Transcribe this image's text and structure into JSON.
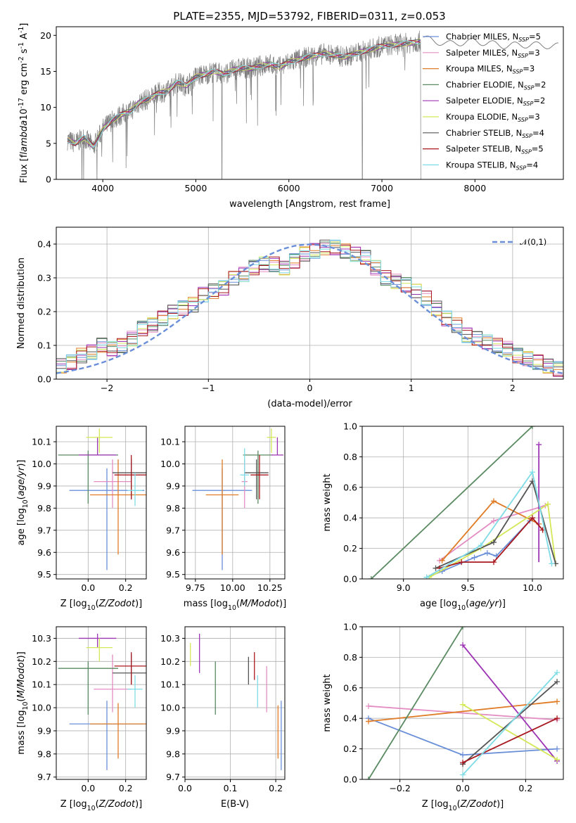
{
  "title": "PLATE=2355, MJD=53792, FIBERID=0311, z=0.053",
  "models": [
    {
      "name": "Chabrier MILES, N$_{SSP}$=5",
      "base": "Chabrier MILES, N",
      "sub": "SSP",
      "tail": "=5",
      "color": "#6a8fd8"
    },
    {
      "name": "Salpeter MILES, N$_{SSP}$=3",
      "base": "Salpeter MILES, N",
      "sub": "SSP",
      "tail": "=3",
      "color": "#e38dc3"
    },
    {
      "name": "Kroupa MILES, N$_{SSP}$=3",
      "base": "Kroupa MILES, N",
      "sub": "SSP",
      "tail": "=3",
      "color": "#e07b26"
    },
    {
      "name": "Chabrier ELODIE, N$_{SSP}$=2",
      "base": "Chabrier ELODIE, N",
      "sub": "SSP",
      "tail": "=2",
      "color": "#5a8a62"
    },
    {
      "name": "Salpeter ELODIE, N$_{SSP}$=2",
      "base": "Salpeter ELODIE, N",
      "sub": "SSP",
      "tail": "=2",
      "color": "#9d35b5"
    },
    {
      "name": "Kroupa ELODIE, N$_{SSP}$=3",
      "base": "Kroupa ELODIE, N",
      "sub": "SSP",
      "tail": "=3",
      "color": "#d4e858"
    },
    {
      "name": "Chabrier STELIB, N$_{SSP}$=4",
      "base": "Chabrier STELIB, N",
      "sub": "SSP",
      "tail": "=4",
      "color": "#555555"
    },
    {
      "name": "Salpeter STELIB, N$_{SSP}$=5",
      "base": "Salpeter STELIB, N",
      "sub": "SSP",
      "tail": "=5",
      "color": "#a8181f"
    },
    {
      "name": "Kroupa STELIB, N$_{SSP}$=4",
      "base": "Kroupa STELIB, N",
      "sub": "SSP",
      "tail": "=4",
      "color": "#7fdce6"
    }
  ],
  "chart_data": [
    {
      "id": "spectrum",
      "type": "line",
      "xlabel": "wavelength [Angstrom, rest frame]",
      "ylabel": "Flux [f$_\\lambda$10$^{-17}$ erg cm$^{-2}$ s$^{-1}$ A$^{-1}$]",
      "xlim": [
        3500,
        8950
      ],
      "ylim": [
        0,
        21.2
      ],
      "xticks": [
        4000,
        5000,
        6000,
        7000,
        8000
      ],
      "yticks": [
        0,
        5,
        10,
        15,
        20
      ],
      "grid": false,
      "legend": "top-right",
      "x": [
        3620,
        3700,
        3800,
        3900,
        4000,
        4100,
        4200,
        4300,
        4400,
        4500,
        4600,
        4700,
        4800,
        4900,
        5000,
        5100,
        5200,
        5300,
        5400,
        5500,
        5600,
        5700,
        5800,
        5900,
        6000,
        6200,
        6400,
        6600,
        6800,
        7000,
        7200,
        7350,
        7420
      ],
      "observed_flux": [
        5.5,
        5.0,
        5.8,
        4.5,
        7.0,
        8.2,
        9.0,
        9.5,
        10.8,
        11.2,
        12.0,
        12.3,
        13.5,
        13.0,
        14.3,
        14.6,
        15.0,
        14.6,
        15.2,
        15.5,
        15.4,
        15.8,
        16.0,
        15.6,
        16.3,
        17.0,
        17.5,
        17.0,
        17.8,
        18.5,
        18.8,
        19.0,
        19.2
      ],
      "continuum_after_7400": {
        "x": [
          7450,
          7700,
          8000,
          8300,
          8600,
          8900
        ],
        "flux": [
          19.6,
          18.8,
          19.2,
          18.6,
          18.7,
          18.5
        ]
      },
      "notable_dips_x": [
        5280,
        6790,
        7420
      ]
    },
    {
      "id": "residuals",
      "type": "histogram",
      "xlabel": "(data-model)/error",
      "ylabel": "Normed distribution",
      "xlim": [
        -2.5,
        2.5
      ],
      "ylim": [
        0,
        0.45
      ],
      "xticks": [
        -2,
        -1,
        0,
        1,
        2
      ],
      "yticks": [
        0.0,
        0.1,
        0.2,
        0.3,
        0.4
      ],
      "grid": true,
      "legend": "top-right",
      "reference_curve_label": "$\\mathcal{N}(0,1)$",
      "bin_width": 0.1,
      "bin_centers": [
        -2.45,
        -2.35,
        -2.25,
        -2.15,
        -2.05,
        -1.95,
        -1.85,
        -1.75,
        -1.65,
        -1.55,
        -1.45,
        -1.35,
        -1.25,
        -1.15,
        -1.05,
        -0.95,
        -0.85,
        -0.75,
        -0.65,
        -0.55,
        -0.45,
        -0.35,
        -0.25,
        -0.15,
        -0.05,
        0.05,
        0.15,
        0.25,
        0.35,
        0.45,
        0.55,
        0.65,
        0.75,
        0.85,
        0.95,
        1.05,
        1.15,
        1.25,
        1.35,
        1.45,
        1.55,
        1.65,
        1.75,
        1.85,
        1.95,
        2.05,
        2.15,
        2.25,
        2.35,
        2.45
      ],
      "densities": [
        0.04,
        0.05,
        0.07,
        0.08,
        0.1,
        0.09,
        0.1,
        0.12,
        0.15,
        0.16,
        0.18,
        0.2,
        0.21,
        0.22,
        0.25,
        0.26,
        0.27,
        0.3,
        0.31,
        0.33,
        0.34,
        0.34,
        0.33,
        0.35,
        0.37,
        0.38,
        0.39,
        0.39,
        0.38,
        0.37,
        0.36,
        0.33,
        0.3,
        0.29,
        0.28,
        0.26,
        0.24,
        0.21,
        0.18,
        0.16,
        0.13,
        0.12,
        0.11,
        0.1,
        0.09,
        0.07,
        0.06,
        0.05,
        0.04,
        0.03
      ],
      "spread": 0.022
    },
    {
      "id": "age-vs-Z",
      "type": "scatter",
      "xlabel": "Z [log$_{10}$($Z/Z_\\odot$)]",
      "ylabel": "age  [log$_{10}$($age/yr$)]",
      "xlim": [
        -0.17,
        0.31
      ],
      "ylim": [
        9.48,
        10.17
      ],
      "xticks": [
        0.0,
        0.2
      ],
      "yticks": [
        9.5,
        9.6,
        9.7,
        9.8,
        9.9,
        10.0,
        10.1
      ],
      "grid": true,
      "points": [
        {
          "x": 0.1,
          "y": 9.88,
          "xerr": 0.2,
          "yerr": [
            0.36,
            0.1
          ]
        },
        {
          "x": 0.13,
          "y": 9.92,
          "xerr": 0.1,
          "yerr": [
            0.12,
            0.1
          ]
        },
        {
          "x": 0.16,
          "y": 9.86,
          "xerr": 0.15,
          "yerr": [
            0.27,
            0.16
          ]
        },
        {
          "x": 0.0,
          "y": 10.04,
          "xerr": 0.16,
          "yerr": [
            0.22,
            0.02
          ]
        },
        {
          "x": 0.05,
          "y": 10.04,
          "xerr": 0.1,
          "yerr": [
            0.0,
            0.08
          ]
        },
        {
          "x": 0.06,
          "y": 10.12,
          "xerr": 0.07,
          "yerr": [
            0.07,
            0.04
          ]
        },
        {
          "x": 0.23,
          "y": 9.96,
          "xerr": 0.1,
          "yerr": [
            0.12,
            0.06
          ]
        },
        {
          "x": 0.23,
          "y": 9.95,
          "xerr": 0.09,
          "yerr": [
            0.11,
            0.09
          ]
        },
        {
          "x": 0.25,
          "y": 9.88,
          "xerr": 0.04,
          "yerr": [
            0.07,
            0.08
          ]
        }
      ]
    },
    {
      "id": "age-vs-mass",
      "type": "scatter",
      "xlabel": "mass [log$_{10}$($M/M_\\odot$)]",
      "ylabel": "",
      "xlim": [
        9.68,
        10.35
      ],
      "ylim": [
        9.48,
        10.17
      ],
      "xticks": [
        9.75,
        10.0,
        10.25
      ],
      "yticks": [
        9.5,
        9.6,
        9.7,
        9.8,
        9.9,
        10.0,
        10.1
      ],
      "grid": true,
      "points": [
        {
          "x": 9.93,
          "y": 9.88,
          "xerr": 0.2,
          "yerr": [
            0.36,
            0.1
          ]
        },
        {
          "x": 10.08,
          "y": 9.92,
          "xerr": 0.02,
          "yerr": [
            0.12,
            0.1
          ]
        },
        {
          "x": 9.93,
          "y": 9.86,
          "xerr": 0.11,
          "yerr": [
            0.27,
            0.16
          ]
        },
        {
          "x": 10.17,
          "y": 10.04,
          "xerr": 0.1,
          "yerr": [
            0.22,
            0.02
          ]
        },
        {
          "x": 10.3,
          "y": 10.04,
          "xerr": 0.04,
          "yerr": [
            0.0,
            0.08
          ]
        },
        {
          "x": 10.26,
          "y": 10.12,
          "xerr": 0.03,
          "yerr": [
            0.07,
            0.04
          ]
        },
        {
          "x": 10.16,
          "y": 9.96,
          "xerr": 0.08,
          "yerr": [
            0.12,
            0.06
          ]
        },
        {
          "x": 10.18,
          "y": 9.95,
          "xerr": 0.06,
          "yerr": [
            0.11,
            0.09
          ]
        },
        {
          "x": 10.08,
          "y": 9.95,
          "xerr": 0.03,
          "yerr": [
            0.05,
            0.12
          ]
        }
      ]
    },
    {
      "id": "weight-vs-age",
      "type": "line",
      "xlabel": "age  [log$_{10}$($age/yr$)]",
      "ylabel": "mass weight",
      "xlim": [
        8.68,
        10.24
      ],
      "ylim": [
        0,
        1
      ],
      "xticks": [
        9.0,
        9.5,
        10.0
      ],
      "yticks": [
        0.0,
        0.2,
        0.4,
        0.6,
        0.8,
        1.0
      ],
      "grid": true,
      "series": [
        {
          "x": [
            9.18,
            9.3,
            9.55,
            9.65,
            9.72,
            9.98
          ],
          "y": [
            0.01,
            0.05,
            0.14,
            0.17,
            0.15,
            0.38
          ]
        },
        {
          "x": [
            9.28,
            9.7,
            10.1
          ],
          "y": [
            0.12,
            0.38,
            0.48
          ]
        },
        {
          "x": [
            9.3,
            9.7,
            10.05
          ],
          "y": [
            0.12,
            0.51,
            0.36
          ]
        },
        {
          "x": [
            8.75,
            10.0
          ],
          "y": [
            0.0,
            1.0
          ]
        },
        {
          "x": [
            10.05
          ],
          "y": [
            0.88
          ],
          "yerr": [
            0.77,
            0.0
          ]
        },
        {
          "x": [
            9.2,
            9.6,
            10.12,
            10.18
          ],
          "y": [
            0.01,
            0.2,
            0.49,
            0.1
          ]
        },
        {
          "x": [
            9.25,
            9.7,
            10.0,
            10.18
          ],
          "y": [
            0.07,
            0.24,
            0.64,
            0.1
          ]
        },
        {
          "x": [
            9.28,
            9.45,
            9.7,
            10.0,
            10.08
          ],
          "y": [
            0.07,
            0.11,
            0.11,
            0.4,
            0.32
          ]
        },
        {
          "x": [
            9.18,
            9.6,
            10.0,
            10.15
          ],
          "y": [
            0.01,
            0.22,
            0.7,
            0.1
          ]
        }
      ]
    },
    {
      "id": "mass-vs-Z",
      "type": "scatter",
      "xlabel": "Z [log$_{10}$($Z/Z_\\odot$)]",
      "ylabel": "mass [log$_{10}$($M/M_\\odot$)]",
      "xlim": [
        -0.17,
        0.31
      ],
      "ylim": [
        9.69,
        10.35
      ],
      "xticks": [
        0.0,
        0.2
      ],
      "yticks": [
        9.7,
        9.8,
        9.9,
        10.0,
        10.1,
        10.2,
        10.3
      ],
      "grid": true,
      "points": [
        {
          "x": 0.1,
          "y": 9.93,
          "xerr": 0.2,
          "yerr": [
            0.2,
            0.1
          ]
        },
        {
          "x": 0.13,
          "y": 10.08,
          "xerr": 0.1,
          "yerr": [
            0.1,
            0.15
          ]
        },
        {
          "x": 0.16,
          "y": 9.93,
          "xerr": 0.15,
          "yerr": [
            0.15,
            0.09
          ]
        },
        {
          "x": 0.0,
          "y": 10.17,
          "xerr": 0.16,
          "yerr": [
            0.2,
            0.03
          ]
        },
        {
          "x": 0.05,
          "y": 10.3,
          "xerr": 0.1,
          "yerr": [
            0.04,
            0.02
          ]
        },
        {
          "x": 0.06,
          "y": 10.26,
          "xerr": 0.07,
          "yerr": [
            0.06,
            0.04
          ]
        },
        {
          "x": 0.23,
          "y": 10.15,
          "xerr": 0.1,
          "yerr": [
            0.05,
            0.08
          ]
        },
        {
          "x": 0.23,
          "y": 10.18,
          "xerr": 0.09,
          "yerr": [
            0.08,
            0.06
          ]
        },
        {
          "x": 0.25,
          "y": 10.08,
          "xerr": 0.04,
          "yerr": [
            0.08,
            0.06
          ]
        }
      ]
    },
    {
      "id": "mass-vs-EBV",
      "type": "scatter",
      "xlabel": "E(B-V)",
      "ylabel": "",
      "xlim": [
        0.0,
        0.22
      ],
      "ylim": [
        9.69,
        10.35
      ],
      "xticks": [
        0.0,
        0.1,
        0.2
      ],
      "yticks": [
        9.7,
        9.8,
        9.9,
        10.0,
        10.1,
        10.2,
        10.3
      ],
      "grid": true,
      "points": [
        {
          "x": 0.212,
          "y": 9.93,
          "yerr": [
            0.2,
            0.1
          ]
        },
        {
          "x": 0.18,
          "y": 10.08,
          "yerr": [
            0.1,
            0.1
          ]
        },
        {
          "x": 0.205,
          "y": 9.93,
          "yerr": [
            0.15,
            0.08
          ]
        },
        {
          "x": 0.067,
          "y": 10.1,
          "yerr": [
            0.13,
            0.1
          ]
        },
        {
          "x": 0.032,
          "y": 10.24,
          "yerr": [
            0.09,
            0.08
          ]
        },
        {
          "x": 0.012,
          "y": 10.23,
          "yerr": [
            0.05,
            0.05
          ]
        },
        {
          "x": 0.14,
          "y": 10.16,
          "yerr": [
            0.06,
            0.06
          ]
        },
        {
          "x": 0.153,
          "y": 10.18,
          "yerr": [
            0.06,
            0.06
          ]
        },
        {
          "x": 0.16,
          "y": 10.08,
          "yerr": [
            0.08,
            0.06
          ]
        }
      ]
    },
    {
      "id": "weight-vs-Z",
      "type": "line",
      "xlabel": "Z [log$_{10}$($Z/Z_\\odot$)]",
      "ylabel": "mass weight",
      "xlim": [
        -0.32,
        0.32
      ],
      "ylim": [
        0,
        1
      ],
      "xticks": [
        -0.2,
        0.0,
        0.2
      ],
      "yticks": [
        0.0,
        0.2,
        0.4,
        0.6,
        0.8,
        1.0
      ],
      "grid": true,
      "series": [
        {
          "x": [
            -0.3,
            0.0,
            0.3
          ],
          "y": [
            0.4,
            0.16,
            0.2
          ]
        },
        {
          "x": [
            -0.3,
            0.3
          ],
          "y": [
            0.48,
            0.39
          ]
        },
        {
          "x": [
            -0.3,
            0.3
          ],
          "y": [
            0.38,
            0.51
          ]
        },
        {
          "x": [
            -0.3,
            0.0
          ],
          "y": [
            0.0,
            1.0
          ]
        },
        {
          "x": [
            0.0,
            0.3
          ],
          "y": [
            0.88,
            0.12
          ]
        },
        {
          "x": [
            0.0,
            0.3
          ],
          "y": [
            0.49,
            0.13
          ]
        },
        {
          "x": [
            0.0,
            0.3
          ],
          "y": [
            0.1,
            0.64
          ]
        },
        {
          "x": [
            0.0,
            0.3
          ],
          "y": [
            0.11,
            0.4
          ]
        },
        {
          "x": [
            0.0,
            0.3
          ],
          "y": [
            0.03,
            0.7
          ]
        }
      ]
    }
  ]
}
